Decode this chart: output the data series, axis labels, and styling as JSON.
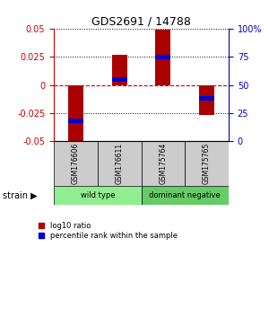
{
  "title": "GDS2691 / 14788",
  "samples": [
    "GSM176606",
    "GSM176611",
    "GSM175764",
    "GSM175765"
  ],
  "log10_ratio": [
    -0.051,
    0.027,
    0.049,
    -0.027
  ],
  "percentile_rank_raw": [
    18,
    55,
    75,
    38
  ],
  "ylim": [
    -0.05,
    0.05
  ],
  "yticks_left": [
    -0.05,
    -0.025,
    0,
    0.025,
    0.05
  ],
  "yticks_right_vals": [
    0,
    25,
    50,
    75,
    100
  ],
  "yticks_right_labels": [
    "0",
    "25",
    "50",
    "75",
    "100%"
  ],
  "groups": [
    {
      "label": "wild type",
      "samples": [
        0,
        1
      ],
      "color": "#90EE90"
    },
    {
      "label": "dominant negative",
      "samples": [
        2,
        3
      ],
      "color": "#66CC66"
    }
  ],
  "group_label": "strain",
  "bar_color": "#AA0000",
  "blue_color": "#0000CC",
  "bar_width": 0.35,
  "left_axis_color": "#CC0000",
  "right_axis_color": "#0000CC",
  "zero_line_color": "#CC0000",
  "sample_box_color": "#CCCCCC",
  "background_color": "#FFFFFF",
  "legend_red_label": "log10 ratio",
  "legend_blue_label": "percentile rank within the sample"
}
